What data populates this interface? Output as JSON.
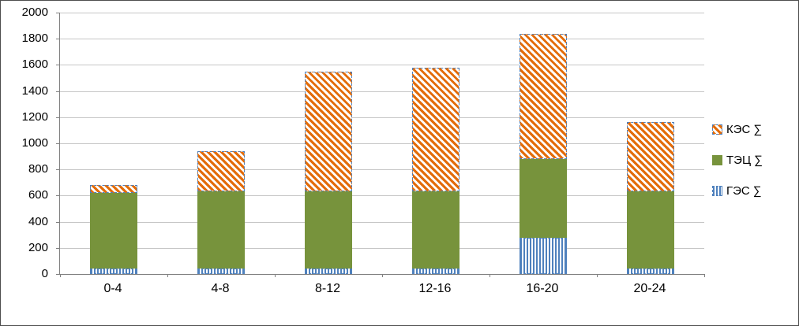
{
  "chart_data": {
    "type": "bar",
    "stacked": true,
    "categories": [
      "0-4",
      "4-8",
      "8-12",
      "12-16",
      "16-20",
      "20-24"
    ],
    "series": [
      {
        "key": "ges",
        "name": "ГЭС ∑",
        "color": "#4F81BD",
        "pattern": "vertical-stripes",
        "values": [
          40,
          40,
          40,
          40,
          280,
          40
        ]
      },
      {
        "key": "tec",
        "name": "ТЭЦ ∑",
        "color": "#77933C",
        "pattern": "solid",
        "values": [
          580,
          590,
          590,
          590,
          600,
          590
        ]
      },
      {
        "key": "kes",
        "name": "КЭС ∑",
        "color": "#E36C09",
        "pattern": "diagonal-hatch",
        "values": [
          60,
          310,
          920,
          950,
          960,
          530
        ]
      }
    ],
    "totals": [
      680,
      940,
      1550,
      1580,
      1840,
      1160
    ],
    "y_axis": {
      "min": 0,
      "max": 2000,
      "step": 200,
      "tick_labels": [
        "0",
        "200",
        "400",
        "600",
        "800",
        "1000",
        "1200",
        "1400",
        "1600",
        "1800",
        "2000"
      ]
    },
    "grid": true,
    "legend": {
      "position": "right",
      "items": [
        "КЭС ∑",
        "ТЭЦ ∑",
        "ГЭС ∑"
      ]
    }
  },
  "colors": {
    "axis": "#808080",
    "gridline": "#C6C6C6",
    "bar_border": "#4F81BD",
    "text": "#000000",
    "chart_border": "#4D4D4D"
  }
}
